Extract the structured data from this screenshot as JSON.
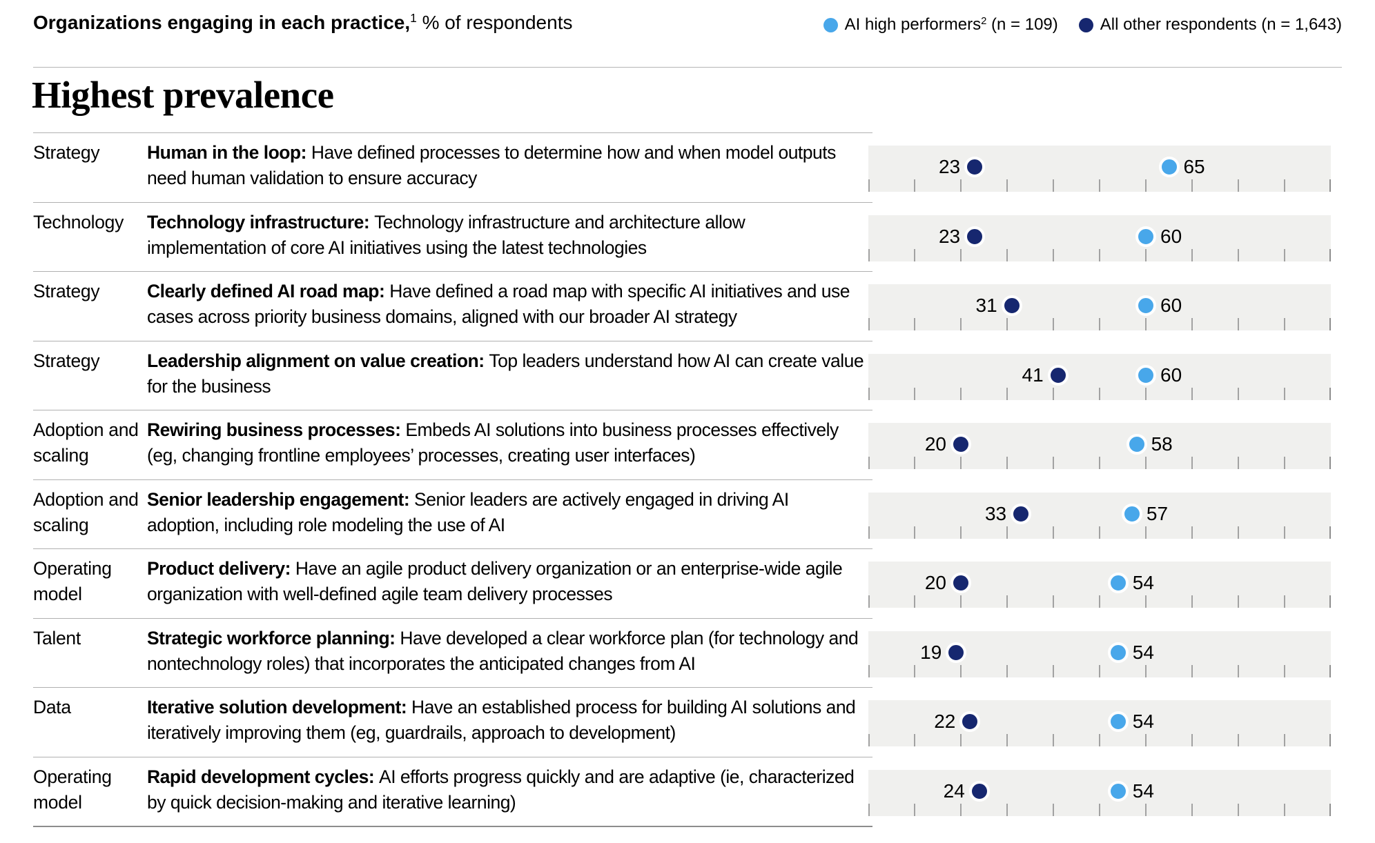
{
  "header": {
    "title_bold": "Organizations engaging in each practice,",
    "title_sup": "1",
    "title_rest": "% of respondents"
  },
  "legend": [
    {
      "name": "ai-high-performers",
      "label": "AI high performers",
      "sup": "2",
      "suffix": " (n = 109)",
      "color": "#48a7ea"
    },
    {
      "name": "all-other-respondents",
      "label": "All other respondents",
      "sup": "",
      "suffix": " (n = 1,643)",
      "color": "#16276f"
    }
  ],
  "section_title": "Highest prevalence",
  "colors": {
    "high_performers": "#48a7ea",
    "other_respondents": "#16276f",
    "band_background": "#f0f0ee",
    "tick": "#a2a2a2"
  },
  "chart_data": {
    "type": "scatter",
    "subtype": "dot-plot",
    "xlim": [
      0,
      100
    ],
    "tick_interval": 10,
    "grid": "ticks-bottom-of-band",
    "legend_position": "top-right",
    "series_meta": [
      {
        "name": "AI high performers",
        "n": "109",
        "color": "#48a7ea",
        "label_side": "right"
      },
      {
        "name": "All other respondents",
        "n": "1,643",
        "color": "#16276f",
        "label_side": "left"
      }
    ],
    "rows": [
      {
        "category": "Strategy",
        "practice": "Human in the loop",
        "description": "Have defined processes to determine how and when model outputs need human validation to ensure accuracy",
        "other": 23,
        "high": 65
      },
      {
        "category": "Technology",
        "practice": "Technology infrastructure",
        "description": "Technology infrastructure and architecture allow implementation of core AI initiatives using the latest technologies",
        "other": 23,
        "high": 60
      },
      {
        "category": "Strategy",
        "practice": "Clearly defined AI road map",
        "description": "Have defined a road map with specific AI initiatives and use cases across priority business domains, aligned with our broader AI strategy",
        "other": 31,
        "high": 60
      },
      {
        "category": "Strategy",
        "practice": "Leadership alignment on value creation",
        "description": "Top leaders understand how AI can create value for the business",
        "other": 41,
        "high": 60
      },
      {
        "category": "Adoption and scaling",
        "practice": "Rewiring business processes",
        "description": "Embeds AI solutions into business processes effectively (eg, changing frontline employees’ processes, creating user interfaces)",
        "other": 20,
        "high": 58
      },
      {
        "category": "Adoption and scaling",
        "practice": "Senior leadership engagement",
        "description": "Senior leaders are actively engaged in driving AI adoption, including role modeling the use of AI",
        "other": 33,
        "high": 57
      },
      {
        "category": "Operating model",
        "practice": "Product delivery",
        "description": "Have an agile product delivery organization or an enterprise-wide agile organization with well-defined agile team delivery processes",
        "other": 20,
        "high": 54
      },
      {
        "category": "Talent",
        "practice": "Strategic workforce planning",
        "description": "Have developed a clear workforce plan (for technology and nontechnology roles) that incorporates the anticipated changes from AI",
        "other": 19,
        "high": 54
      },
      {
        "category": "Data",
        "practice": "Iterative solution development",
        "description": "Have an established process for building AI solutions and iteratively improving them (eg, guardrails, approach to development)",
        "other": 22,
        "high": 54
      },
      {
        "category": "Operating model",
        "practice": "Rapid development cycles",
        "description": "AI efforts progress quickly and are adaptive (ie, characterized by quick decision-making and iterative learning)",
        "other": 24,
        "high": 54
      }
    ]
  }
}
